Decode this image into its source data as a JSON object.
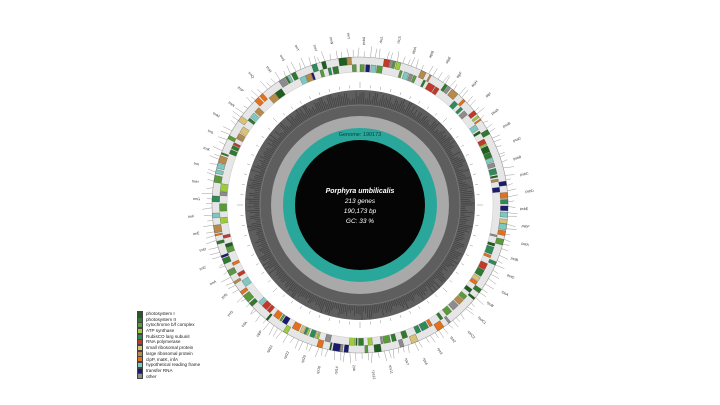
{
  "organism": "Porphyra umbilicalis",
  "gene_count_text": "213 genes",
  "length_text": "190,173 bp",
  "gc_text": "GC: 33 %",
  "genome_ring_label": "Genome: 190173",
  "colors": {
    "background": "#ffffff",
    "outer_ring": "#e6e6e6",
    "gc_ring": "#5e5e5e",
    "gc_ring_inner": "#a9a9a9",
    "teal_ring": "#2aa79b",
    "center": "#050505"
  },
  "legend": [
    {
      "label": "photosystem I",
      "color": "#1e5e1e"
    },
    {
      "label": "photosystem II",
      "color": "#2f7a2f"
    },
    {
      "label": "cytochrome b/f complex",
      "color": "#5a9a3a"
    },
    {
      "label": "ATP synthase",
      "color": "#9ccc3c"
    },
    {
      "label": "RubisCO larg subunit",
      "color": "#2e8b57"
    },
    {
      "label": "RNA polymerase",
      "color": "#c0392b"
    },
    {
      "label": "small ribosomal protein",
      "color": "#d8c27a"
    },
    {
      "label": "large ribosomal protein",
      "color": "#b58a4a"
    },
    {
      "label": "clpP, matK, infA",
      "color": "#e2711d"
    },
    {
      "label": "hypothetical reading frame",
      "color": "#7ec8c0"
    },
    {
      "label": "transfer RNA",
      "color": "#1a1a6e"
    },
    {
      "label": "other",
      "color": "#8c8c8c"
    }
  ],
  "gene_labels": [
    "psbA",
    "rbcL",
    "rbcS",
    "atpA",
    "atpB",
    "atpE",
    "atpF",
    "atpH",
    "atpI",
    "psaA",
    "psaB",
    "psaC",
    "psbB",
    "psbC",
    "psbD",
    "psbE",
    "psbF",
    "petA",
    "petB",
    "petD",
    "rpoA",
    "rpoB",
    "rpoC1",
    "rpoC2",
    "rps2",
    "rps3",
    "rps4",
    "rps7",
    "rps11",
    "rps12",
    "rpl2",
    "rpl14",
    "rpl16",
    "rpl20",
    "rpl22",
    "rpl23",
    "clpP",
    "infA",
    "ycf3",
    "ycf4",
    "trnA",
    "trnC",
    "trnD",
    "trnE",
    "trnF",
    "trnG",
    "trnH",
    "trnI",
    "trnK",
    "trnL",
    "trnM",
    "trnN",
    "trnP",
    "trnQ",
    "trnR",
    "trnS",
    "trnT",
    "trnV",
    "trnW",
    "trnY"
  ]
}
